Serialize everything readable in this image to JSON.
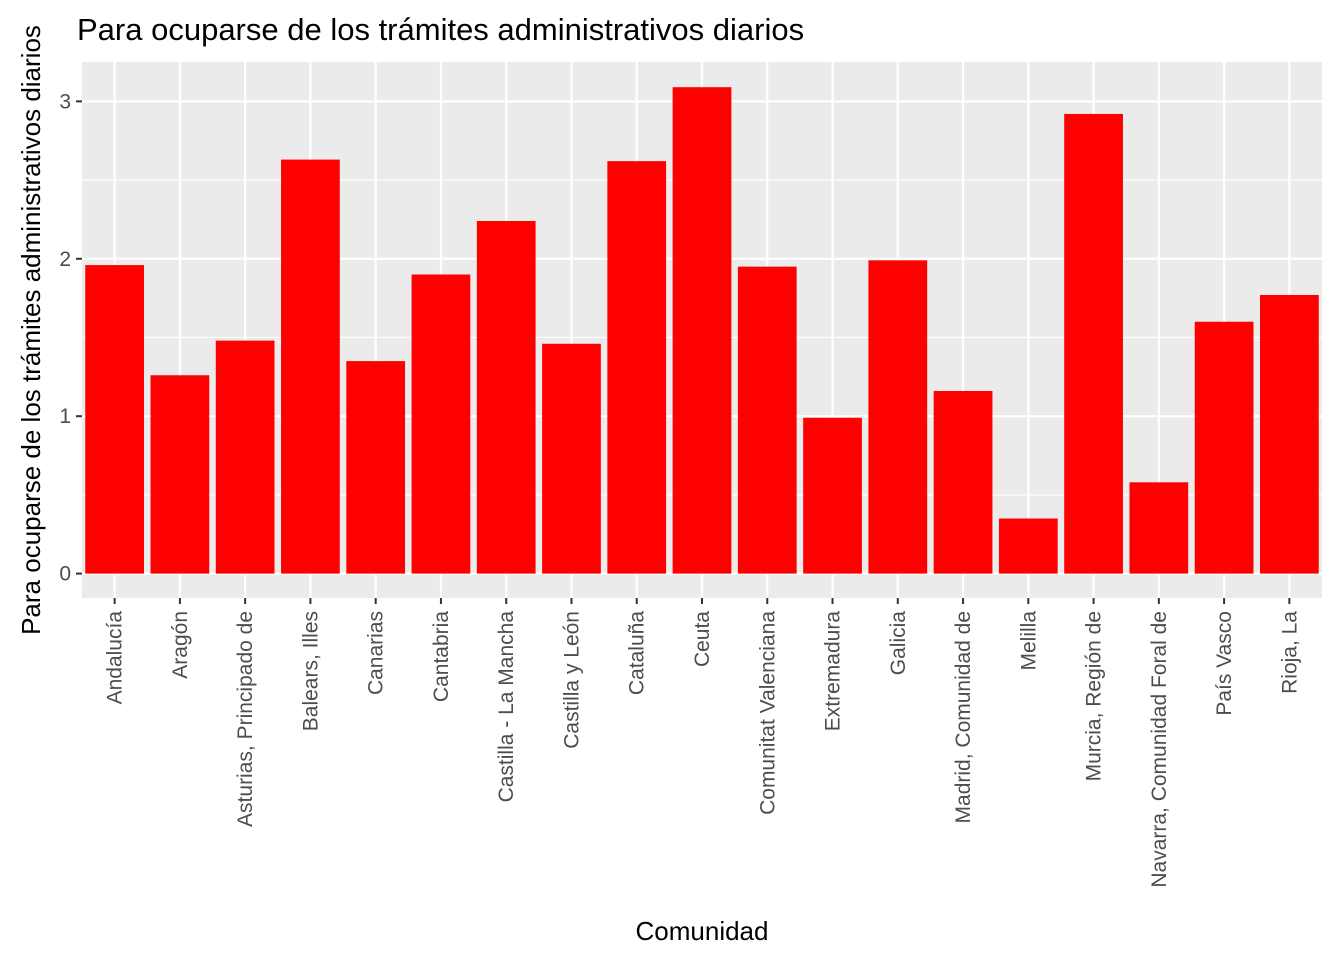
{
  "chart_data": {
    "type": "bar",
    "title": "Para ocuparse de los trámites administrativos diarios",
    "xlabel": "Comunidad",
    "ylabel": "Para ocuparse de los trámites administrativos diarios",
    "categories": [
      "Andalucía",
      "Aragón",
      "Asturias, Principado de",
      "Balears, Illes",
      "Canarias",
      "Cantabria",
      "Castilla - La Mancha",
      "Castilla y León",
      "Cataluña",
      "Ceuta",
      "Comunitat Valenciana",
      "Extremadura",
      "Galicia",
      "Madrid, Comunidad de",
      "Melilla",
      "Murcia, Región de",
      "Navarra, Comunidad Foral de",
      "País Vasco",
      "Rioja, La"
    ],
    "values": [
      1.96,
      1.26,
      1.48,
      2.63,
      1.35,
      1.9,
      2.24,
      1.46,
      2.62,
      3.09,
      1.95,
      0.99,
      1.99,
      1.16,
      0.35,
      2.92,
      0.58,
      1.6,
      1.77
    ],
    "yticks": [
      0,
      1,
      2,
      3
    ],
    "ylim": [
      -0.155,
      3.25
    ],
    "grid": true,
    "bar_color": "#FF0000",
    "panel_color": "#EBEBEB",
    "grid_color": "#FFFFFF"
  }
}
